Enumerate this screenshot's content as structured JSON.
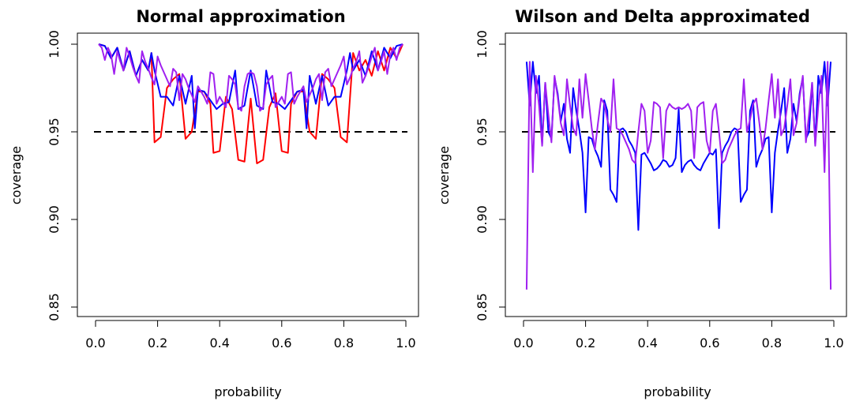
{
  "chart_data": [
    {
      "type": "line",
      "title": "Normal approximation",
      "xlabel": "probability",
      "ylabel": "coverage",
      "xlim": [
        0,
        1
      ],
      "ylim": [
        0.85,
        1.0
      ],
      "xticks": [
        "0.0",
        "0.2",
        "0.4",
        "0.6",
        "0.8",
        "1.0"
      ],
      "yticks": [
        "0.85",
        "0.90",
        "0.95",
        "1.00"
      ],
      "reference_line": {
        "y": 0.95,
        "style": "dashed",
        "color": "#000000"
      },
      "grid": false,
      "series": [
        {
          "color": "#ff0000",
          "x": [
            0.01,
            0.03,
            0.05,
            0.07,
            0.09,
            0.11,
            0.13,
            0.15,
            0.17,
            0.18,
            0.19,
            0.21,
            0.23,
            0.25,
            0.27,
            0.29,
            0.31,
            0.33,
            0.35,
            0.37,
            0.38,
            0.4,
            0.42,
            0.44,
            0.46,
            0.48,
            0.5,
            0.52,
            0.54,
            0.56,
            0.58,
            0.6,
            0.62,
            0.63,
            0.65,
            0.67,
            0.69,
            0.71,
            0.73,
            0.75,
            0.77,
            0.79,
            0.81,
            0.83,
            0.85,
            0.87,
            0.89,
            0.91,
            0.93,
            0.95,
            0.97,
            0.99
          ],
          "y": [
            1.0,
            0.999,
            0.992,
            0.998,
            0.985,
            0.996,
            0.982,
            0.991,
            0.985,
            0.995,
            0.944,
            0.947,
            0.975,
            0.98,
            0.983,
            0.946,
            0.95,
            0.973,
            0.973,
            0.966,
            0.938,
            0.939,
            0.97,
            0.963,
            0.934,
            0.933,
            0.969,
            0.932,
            0.934,
            0.964,
            0.972,
            0.939,
            0.938,
            0.966,
            0.973,
            0.973,
            0.95,
            0.946,
            0.983,
            0.98,
            0.975,
            0.947,
            0.944,
            0.995,
            0.985,
            0.991,
            0.982,
            0.996,
            0.985,
            0.998,
            0.992,
            1.0
          ]
        },
        {
          "color": "#0000ff",
          "x": [
            0.01,
            0.03,
            0.05,
            0.07,
            0.09,
            0.11,
            0.13,
            0.15,
            0.17,
            0.18,
            0.19,
            0.21,
            0.23,
            0.25,
            0.27,
            0.29,
            0.31,
            0.32,
            0.33,
            0.35,
            0.37,
            0.39,
            0.41,
            0.43,
            0.45,
            0.46,
            0.48,
            0.5,
            0.52,
            0.54,
            0.55,
            0.57,
            0.59,
            0.61,
            0.63,
            0.65,
            0.67,
            0.68,
            0.69,
            0.71,
            0.73,
            0.75,
            0.77,
            0.79,
            0.81,
            0.82,
            0.83,
            0.85,
            0.87,
            0.89,
            0.91,
            0.93,
            0.95,
            0.97,
            0.99
          ],
          "y": [
            1.0,
            0.999,
            0.992,
            0.998,
            0.985,
            0.996,
            0.982,
            0.991,
            0.985,
            0.995,
            0.985,
            0.97,
            0.97,
            0.965,
            0.982,
            0.966,
            0.982,
            0.952,
            0.974,
            0.973,
            0.968,
            0.963,
            0.966,
            0.967,
            0.985,
            0.963,
            0.965,
            0.985,
            0.965,
            0.963,
            0.985,
            0.967,
            0.966,
            0.963,
            0.968,
            0.973,
            0.974,
            0.952,
            0.982,
            0.966,
            0.982,
            0.965,
            0.97,
            0.97,
            0.985,
            0.995,
            0.985,
            0.991,
            0.982,
            0.996,
            0.985,
            0.998,
            0.992,
            0.999,
            1.0
          ]
        },
        {
          "color": "#a020f0",
          "x": [
            0.01,
            0.02,
            0.03,
            0.04,
            0.05,
            0.06,
            0.07,
            0.08,
            0.09,
            0.1,
            0.11,
            0.12,
            0.13,
            0.14,
            0.15,
            0.16,
            0.17,
            0.18,
            0.19,
            0.2,
            0.21,
            0.22,
            0.23,
            0.24,
            0.25,
            0.26,
            0.27,
            0.28,
            0.29,
            0.3,
            0.31,
            0.32,
            0.33,
            0.34,
            0.35,
            0.36,
            0.37,
            0.38,
            0.39,
            0.4,
            0.41,
            0.42,
            0.43,
            0.44,
            0.45,
            0.46,
            0.47,
            0.48,
            0.49,
            0.5,
            0.51,
            0.52,
            0.53,
            0.54,
            0.55,
            0.56,
            0.57,
            0.58,
            0.59,
            0.6,
            0.61,
            0.62,
            0.63,
            0.64,
            0.65,
            0.66,
            0.67,
            0.68,
            0.69,
            0.7,
            0.71,
            0.72,
            0.73,
            0.74,
            0.75,
            0.76,
            0.77,
            0.78,
            0.79,
            0.8,
            0.81,
            0.82,
            0.83,
            0.84,
            0.85,
            0.86,
            0.87,
            0.88,
            0.89,
            0.9,
            0.91,
            0.92,
            0.93,
            0.94,
            0.95,
            0.96,
            0.97,
            0.98,
            0.99
          ],
          "y": [
            1.0,
            0.998,
            0.991,
            0.998,
            0.994,
            0.983,
            0.996,
            0.99,
            0.985,
            0.998,
            0.993,
            0.987,
            0.982,
            0.978,
            0.996,
            0.99,
            0.986,
            0.981,
            0.977,
            0.993,
            0.988,
            0.984,
            0.98,
            0.976,
            0.986,
            0.984,
            0.968,
            0.983,
            0.98,
            0.975,
            0.971,
            0.967,
            0.976,
            0.973,
            0.97,
            0.966,
            0.984,
            0.983,
            0.966,
            0.97,
            0.967,
            0.964,
            0.982,
            0.98,
            0.977,
            0.964,
            0.962,
            0.976,
            0.983,
            0.984,
            0.983,
            0.976,
            0.962,
            0.964,
            0.977,
            0.98,
            0.982,
            0.964,
            0.967,
            0.97,
            0.966,
            0.983,
            0.984,
            0.966,
            0.97,
            0.973,
            0.976,
            0.967,
            0.971,
            0.975,
            0.98,
            0.983,
            0.968,
            0.984,
            0.986,
            0.976,
            0.98,
            0.984,
            0.988,
            0.993,
            0.977,
            0.981,
            0.986,
            0.99,
            0.996,
            0.978,
            0.982,
            0.987,
            0.993,
            0.998,
            0.985,
            0.99,
            0.996,
            0.983,
            0.994,
            0.998,
            0.991,
            0.998,
            1.0
          ]
        }
      ]
    },
    {
      "type": "line",
      "title": "Wilson and Delta approximated",
      "xlabel": "probability",
      "ylabel": "coverage",
      "xlim": [
        0,
        1
      ],
      "ylim": [
        0.85,
        1.0
      ],
      "xticks": [
        "0.0",
        "0.2",
        "0.4",
        "0.6",
        "0.8",
        "1.0"
      ],
      "yticks": [
        "0.85",
        "0.90",
        "0.95",
        "1.00"
      ],
      "reference_line": {
        "y": 0.95,
        "style": "dashed",
        "color": "#000000"
      },
      "grid": false,
      "series": [
        {
          "color": "#0000ff",
          "x": [
            0.01,
            0.02,
            0.03,
            0.04,
            0.05,
            0.06,
            0.07,
            0.08,
            0.09,
            0.1,
            0.11,
            0.12,
            0.13,
            0.14,
            0.15,
            0.16,
            0.17,
            0.18,
            0.19,
            0.2,
            0.21,
            0.22,
            0.23,
            0.24,
            0.25,
            0.26,
            0.27,
            0.28,
            0.29,
            0.3,
            0.31,
            0.32,
            0.33,
            0.34,
            0.35,
            0.36,
            0.37,
            0.38,
            0.39,
            0.4,
            0.41,
            0.42,
            0.43,
            0.44,
            0.45,
            0.46,
            0.47,
            0.48,
            0.49,
            0.5,
            0.51,
            0.52,
            0.53,
            0.54,
            0.55,
            0.56,
            0.57,
            0.58,
            0.59,
            0.6,
            0.61,
            0.62,
            0.63,
            0.64,
            0.65,
            0.66,
            0.67,
            0.68,
            0.69,
            0.7,
            0.71,
            0.72,
            0.73,
            0.74,
            0.75,
            0.76,
            0.77,
            0.78,
            0.79,
            0.8,
            0.81,
            0.82,
            0.83,
            0.84,
            0.85,
            0.86,
            0.87,
            0.88,
            0.89,
            0.9,
            0.91,
            0.92,
            0.93,
            0.94,
            0.95,
            0.96,
            0.97,
            0.98,
            0.99
          ],
          "y": [
            0.99,
            0.965,
            0.99,
            0.972,
            0.982,
            0.943,
            0.978,
            0.95,
            0.946,
            0.981,
            0.972,
            0.956,
            0.966,
            0.946,
            0.938,
            0.975,
            0.962,
            0.951,
            0.938,
            0.904,
            0.947,
            0.946,
            0.94,
            0.936,
            0.93,
            0.968,
            0.962,
            0.917,
            0.914,
            0.91,
            0.951,
            0.952,
            0.95,
            0.945,
            0.942,
            0.938,
            0.894,
            0.937,
            0.938,
            0.935,
            0.932,
            0.928,
            0.929,
            0.931,
            0.934,
            0.933,
            0.93,
            0.931,
            0.935,
            0.963,
            0.927,
            0.931,
            0.933,
            0.934,
            0.931,
            0.929,
            0.928,
            0.932,
            0.935,
            0.938,
            0.937,
            0.94,
            0.895,
            0.938,
            0.942,
            0.945,
            0.95,
            0.952,
            0.951,
            0.91,
            0.914,
            0.917,
            0.962,
            0.968,
            0.93,
            0.936,
            0.94,
            0.946,
            0.947,
            0.904,
            0.938,
            0.951,
            0.962,
            0.975,
            0.938,
            0.946,
            0.966,
            0.956,
            0.972,
            0.981,
            0.946,
            0.95,
            0.978,
            0.943,
            0.982,
            0.972,
            0.99,
            0.965,
            0.99
          ]
        },
        {
          "color": "#a020f0",
          "x": [
            0.01,
            0.02,
            0.03,
            0.04,
            0.05,
            0.06,
            0.07,
            0.08,
            0.09,
            0.1,
            0.11,
            0.12,
            0.13,
            0.14,
            0.15,
            0.16,
            0.17,
            0.18,
            0.19,
            0.2,
            0.21,
            0.22,
            0.23,
            0.24,
            0.25,
            0.26,
            0.27,
            0.28,
            0.29,
            0.3,
            0.31,
            0.32,
            0.33,
            0.34,
            0.35,
            0.36,
            0.37,
            0.38,
            0.39,
            0.4,
            0.41,
            0.42,
            0.43,
            0.44,
            0.45,
            0.46,
            0.47,
            0.48,
            0.49,
            0.5,
            0.51,
            0.52,
            0.53,
            0.54,
            0.55,
            0.56,
            0.57,
            0.58,
            0.59,
            0.6,
            0.61,
            0.62,
            0.63,
            0.64,
            0.65,
            0.66,
            0.67,
            0.68,
            0.69,
            0.7,
            0.71,
            0.72,
            0.73,
            0.74,
            0.75,
            0.76,
            0.77,
            0.78,
            0.79,
            0.8,
            0.81,
            0.82,
            0.83,
            0.84,
            0.85,
            0.86,
            0.87,
            0.88,
            0.89,
            0.9,
            0.91,
            0.92,
            0.93,
            0.94,
            0.95,
            0.96,
            0.97,
            0.98,
            0.99
          ],
          "y": [
            0.86,
            0.99,
            0.927,
            0.982,
            0.965,
            0.942,
            0.978,
            0.96,
            0.944,
            0.982,
            0.97,
            0.955,
            0.948,
            0.98,
            0.965,
            0.952,
            0.948,
            0.98,
            0.958,
            0.983,
            0.968,
            0.952,
            0.94,
            0.955,
            0.969,
            0.966,
            0.957,
            0.95,
            0.98,
            0.952,
            0.951,
            0.948,
            0.944,
            0.94,
            0.934,
            0.932,
            0.95,
            0.966,
            0.962,
            0.938,
            0.945,
            0.967,
            0.966,
            0.964,
            0.935,
            0.962,
            0.966,
            0.964,
            0.963,
            0.964,
            0.963,
            0.964,
            0.966,
            0.962,
            0.935,
            0.964,
            0.966,
            0.967,
            0.945,
            0.938,
            0.962,
            0.966,
            0.95,
            0.932,
            0.934,
            0.94,
            0.944,
            0.948,
            0.951,
            0.952,
            0.98,
            0.95,
            0.957,
            0.966,
            0.969,
            0.955,
            0.94,
            0.952,
            0.968,
            0.983,
            0.958,
            0.98,
            0.948,
            0.952,
            0.965,
            0.98,
            0.948,
            0.955,
            0.97,
            0.982,
            0.944,
            0.96,
            0.978,
            0.942,
            0.965,
            0.982,
            0.927,
            0.99,
            0.86
          ]
        }
      ]
    }
  ]
}
